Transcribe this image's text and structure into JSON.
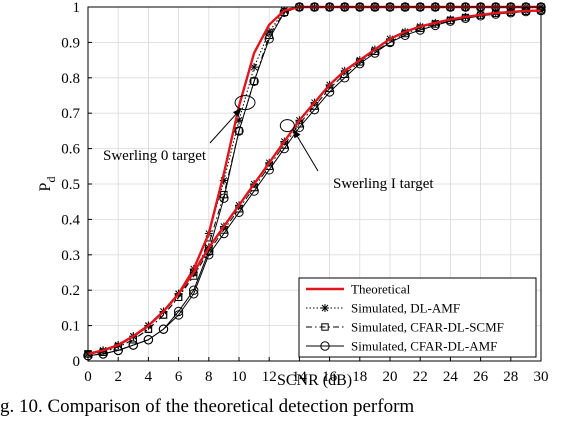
{
  "chart_data": {
    "type": "line",
    "xlabel": "SCNR (dB)",
    "ylabel": "P",
    "ylabel_sub": "d",
    "xlim": [
      0,
      30
    ],
    "ylim": [
      0,
      1
    ],
    "xticks": [
      0,
      2,
      4,
      6,
      8,
      10,
      12,
      14,
      16,
      18,
      20,
      22,
      24,
      26,
      28,
      30
    ],
    "yticks": [
      0,
      0.1,
      0.2,
      0.3,
      0.4,
      0.5,
      0.6,
      0.7,
      0.8,
      0.9,
      1
    ],
    "grid": true,
    "legend_position": "bottom-right",
    "x": [
      0,
      1,
      2,
      3,
      4,
      5,
      6,
      7,
      8,
      9,
      10,
      11,
      12,
      13,
      14,
      15,
      16,
      17,
      18,
      19,
      20,
      21,
      22,
      23,
      24,
      25,
      26,
      27,
      28,
      29,
      30
    ],
    "groups": [
      {
        "label": "Swerling 0 target",
        "series": [
          {
            "name": "Theoretical",
            "values": [
              0.02,
              0.03,
              0.045,
              0.07,
              0.1,
              0.14,
              0.19,
              0.26,
              0.36,
              0.53,
              0.72,
              0.87,
              0.95,
              0.99,
              1.0,
              1.0,
              1.0,
              1.0,
              1.0,
              1.0,
              1.0,
              1.0,
              1.0,
              1.0,
              1.0,
              1.0,
              1.0,
              1.0,
              1.0,
              1.0,
              1.0
            ]
          },
          {
            "name": "Simulated, DL-AMF",
            "values": [
              0.02,
              0.03,
              0.045,
              0.07,
              0.1,
              0.14,
              0.19,
              0.26,
              0.36,
              0.51,
              0.68,
              0.83,
              0.93,
              0.99,
              1.0,
              1.0,
              1.0,
              1.0,
              1.0,
              1.0,
              1.0,
              1.0,
              1.0,
              1.0,
              1.0,
              1.0,
              1.0,
              1.0,
              1.0,
              1.0,
              1.0
            ]
          },
          {
            "name": "Simulated, CFAR-DL-SCMF",
            "values": [
              0.02,
              0.025,
              0.04,
              0.06,
              0.09,
              0.13,
              0.18,
              0.25,
              0.33,
              0.47,
              0.65,
              0.79,
              0.92,
              0.985,
              1.0,
              1.0,
              1.0,
              1.0,
              1.0,
              1.0,
              1.0,
              1.0,
              1.0,
              1.0,
              1.0,
              1.0,
              1.0,
              1.0,
              1.0,
              1.0,
              1.0
            ]
          },
          {
            "name": "Simulated, CFAR-DL-AMF",
            "values": [
              0.015,
              0.02,
              0.03,
              0.045,
              0.06,
              0.09,
              0.14,
              0.2,
              0.31,
              0.46,
              0.65,
              0.79,
              0.91,
              0.985,
              1.0,
              1.0,
              1.0,
              1.0,
              1.0,
              1.0,
              1.0,
              1.0,
              1.0,
              1.0,
              1.0,
              1.0,
              1.0,
              1.0,
              1.0,
              1.0,
              1.0
            ]
          }
        ]
      },
      {
        "label": "Swerling I target",
        "series": [
          {
            "name": "Theoretical",
            "values": [
              0.02,
              0.03,
              0.045,
              0.07,
              0.1,
              0.14,
              0.19,
              0.25,
              0.32,
              0.38,
              0.44,
              0.5,
              0.56,
              0.62,
              0.68,
              0.73,
              0.78,
              0.82,
              0.85,
              0.88,
              0.91,
              0.93,
              0.945,
              0.955,
              0.965,
              0.972,
              0.978,
              0.983,
              0.986,
              0.989,
              0.99
            ]
          },
          {
            "name": "Simulated, DL-AMF",
            "values": [
              0.02,
              0.03,
              0.045,
              0.07,
              0.1,
              0.14,
              0.19,
              0.25,
              0.32,
              0.38,
              0.44,
              0.5,
              0.56,
              0.62,
              0.68,
              0.73,
              0.78,
              0.82,
              0.85,
              0.88,
              0.91,
              0.93,
              0.945,
              0.955,
              0.965,
              0.972,
              0.978,
              0.983,
              0.986,
              0.989,
              0.99
            ]
          },
          {
            "name": "Simulated, CFAR-DL-SCMF",
            "values": [
              0.02,
              0.025,
              0.04,
              0.06,
              0.09,
              0.13,
              0.18,
              0.24,
              0.31,
              0.37,
              0.43,
              0.49,
              0.55,
              0.61,
              0.67,
              0.72,
              0.77,
              0.81,
              0.845,
              0.875,
              0.9,
              0.925,
              0.94,
              0.952,
              0.962,
              0.97,
              0.977,
              0.982,
              0.985,
              0.988,
              0.99
            ]
          },
          {
            "name": "Simulated, CFAR-DL-AMF",
            "values": [
              0.015,
              0.02,
              0.03,
              0.045,
              0.06,
              0.09,
              0.13,
              0.19,
              0.3,
              0.36,
              0.42,
              0.48,
              0.54,
              0.6,
              0.66,
              0.71,
              0.76,
              0.8,
              0.84,
              0.87,
              0.9,
              0.92,
              0.935,
              0.948,
              0.96,
              0.968,
              0.975,
              0.98,
              0.984,
              0.987,
              0.99
            ]
          }
        ]
      }
    ],
    "styles": [
      {
        "name": "Theoretical",
        "color": "#e0161c",
        "width": 2.4,
        "dash": "",
        "marker": "none"
      },
      {
        "name": "Simulated, DL-AMF",
        "color": "#000000",
        "width": 1,
        "dash": "1.5,2",
        "marker": "star"
      },
      {
        "name": "Simulated, CFAR-DL-SCMF",
        "color": "#000000",
        "width": 1,
        "dash": "6,3,1.5,3",
        "marker": "square"
      },
      {
        "name": "Simulated, CFAR-DL-AMF",
        "color": "#000000",
        "width": 1,
        "dash": "",
        "marker": "circle"
      }
    ],
    "annotations": [
      {
        "text": "Swerling 0 target",
        "point": [
          10.4,
          0.73
        ]
      },
      {
        "text": "Swerling I target",
        "point": [
          13.2,
          0.665
        ]
      }
    ]
  },
  "caption": "g. 10. Comparison of the theoretical detection perform"
}
